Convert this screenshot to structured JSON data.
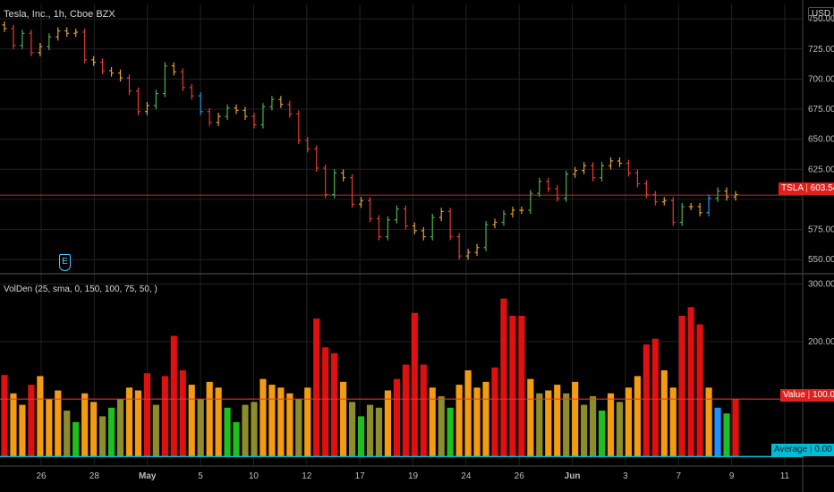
{
  "header": {
    "symbol_title": "Tesla, Inc., 1h, Cboe BZX",
    "currency": "USD",
    "indicator_title": "VolDen (25, sma, 0, 150, 100, 75, 50, )"
  },
  "colors": {
    "background": "#000000",
    "grid": "#222222",
    "up": "#4caf50",
    "down": "#e53935",
    "neutral": "#e0a030",
    "blue": "#2196f3",
    "vol_red": "#e01010",
    "vol_orange": "#f39c12",
    "vol_olive": "#8d8d2b",
    "vol_green": "#1fbf1f",
    "vol_blue": "#1e90ff",
    "price_line": "#e53935",
    "value_line": "#e53935",
    "average_line": "#00bcd4"
  },
  "markers": {
    "earnings": "E"
  },
  "chart_data": [
    {
      "type": "ohlc",
      "series_name": "TSLA",
      "y_ticks": [
        550,
        575,
        600,
        625,
        650,
        675,
        700,
        725,
        750
      ],
      "y_tick_labels": [
        "550.00",
        "575.00",
        "",
        "625.00",
        "650.00",
        "675.00",
        "700.00",
        "725.00",
        "750.00"
      ],
      "ylim": [
        539,
        762
      ],
      "x_labels": [
        "26",
        "28",
        "May",
        "5",
        "10",
        "12",
        "17",
        "19",
        "24",
        "26",
        "Jun",
        "3",
        "7",
        "9",
        "11"
      ],
      "last_price": {
        "label": "TSLA",
        "value": "603.54",
        "y": 603.54
      },
      "close": [
        742,
        728,
        738,
        722,
        727,
        735,
        740,
        738,
        739,
        716,
        714,
        707,
        705,
        701,
        690,
        673,
        678,
        688,
        711,
        706,
        693,
        686,
        673,
        664,
        669,
        676,
        674,
        669,
        662,
        677,
        683,
        679,
        671,
        649,
        642,
        626,
        604,
        622,
        618,
        596,
        599,
        584,
        569,
        583,
        592,
        578,
        574,
        569,
        585,
        590,
        569,
        553,
        556,
        560,
        579,
        581,
        588,
        591,
        591,
        605,
        615,
        609,
        601,
        621,
        624,
        628,
        618,
        628,
        632,
        630,
        622,
        613,
        604,
        598,
        599,
        581,
        594,
        594,
        589,
        601,
        607,
        602,
        604
      ],
      "volumes": [
        142,
        110,
        90,
        125,
        140,
        100,
        115,
        80,
        60,
        110,
        95,
        70,
        85,
        100,
        120,
        115,
        145,
        90,
        140,
        210,
        150,
        125,
        100,
        130,
        120,
        85,
        60,
        90,
        95,
        135,
        125,
        120,
        110,
        100,
        120,
        240,
        190,
        180,
        130,
        95,
        70,
        90,
        85,
        115,
        135,
        160,
        250,
        160,
        120,
        105,
        85,
        125,
        150,
        120,
        130,
        155,
        275,
        245,
        245,
        135,
        110,
        115,
        125,
        110,
        130,
        90,
        105,
        80,
        110,
        95,
        120,
        140,
        195,
        205,
        150,
        120,
        245,
        260,
        230,
        120,
        85,
        75,
        100
      ],
      "volume_colors": [
        "red",
        "orange",
        "orange",
        "red",
        "orange",
        "orange",
        "orange",
        "olive",
        "green",
        "orange",
        "orange",
        "olive",
        "green",
        "olive",
        "orange",
        "orange",
        "red",
        "olive",
        "red",
        "red",
        "red",
        "orange",
        "olive",
        "orange",
        "orange",
        "green",
        "green",
        "olive",
        "olive",
        "orange",
        "orange",
        "orange",
        "orange",
        "olive",
        "orange",
        "red",
        "red",
        "red",
        "orange",
        "olive",
        "green",
        "olive",
        "olive",
        "orange",
        "red",
        "red",
        "red",
        "red",
        "orange",
        "olive",
        "green",
        "orange",
        "orange",
        "orange",
        "orange",
        "red",
        "red",
        "red",
        "red",
        "orange",
        "olive",
        "orange",
        "orange",
        "olive",
        "orange",
        "olive",
        "olive",
        "green",
        "orange",
        "olive",
        "orange",
        "orange",
        "red",
        "red",
        "orange",
        "orange",
        "red",
        "red",
        "red",
        "orange",
        "blue",
        "green",
        "red"
      ],
      "volume_y_ticks": [
        100,
        200,
        300
      ],
      "volume_y_tick_labels": [
        "",
        "200.00",
        "300.00"
      ],
      "volume_ylim": [
        -15,
        315
      ],
      "value_line": {
        "label": "Value",
        "value": "100.00",
        "y": 100
      },
      "average_line": {
        "label": "Average",
        "value": "0.00",
        "y": 0
      }
    }
  ]
}
